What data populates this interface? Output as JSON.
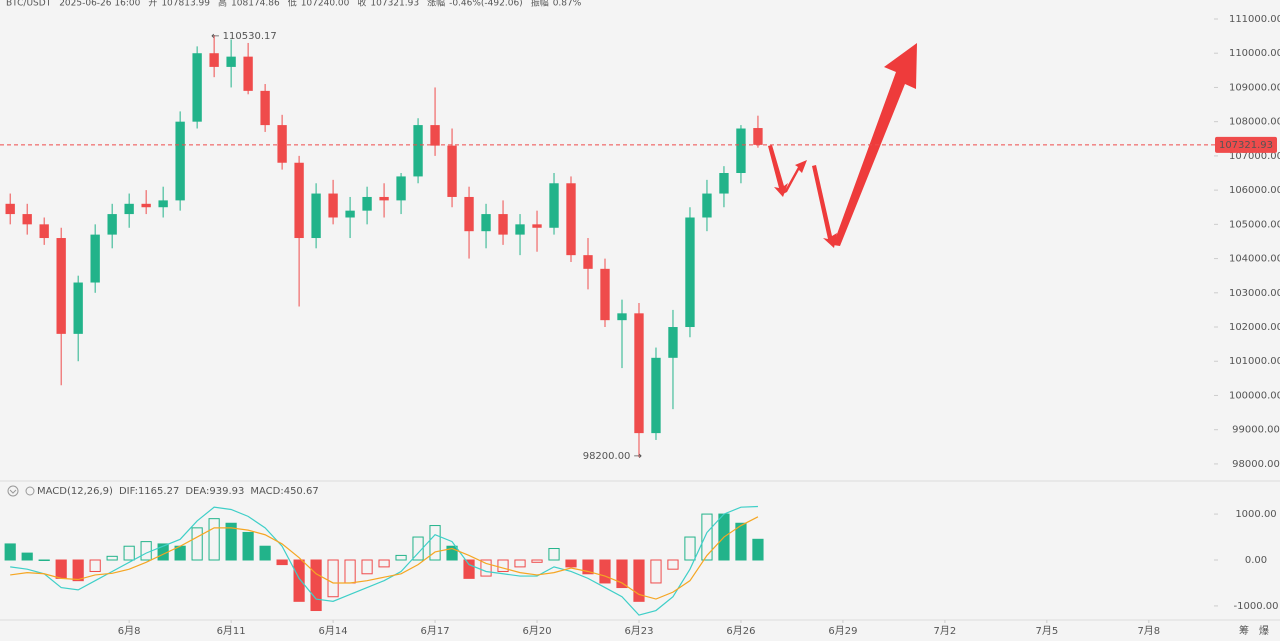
{
  "header": [
    {
      "text": "BTC/USDT",
      "color": "#888888"
    },
    {
      "text": "2025-06-26 16:00",
      "color": "#888888"
    },
    {
      "text": "开",
      "color": "#888888"
    },
    {
      "text": "107813.99",
      "color": "#ef4b4b"
    },
    {
      "text": "高",
      "color": "#888888"
    },
    {
      "text": "108174.86",
      "color": "#ef4b4b"
    },
    {
      "text": "低",
      "color": "#888888"
    },
    {
      "text": "107240.00",
      "color": "#ef4b4b"
    },
    {
      "text": "收",
      "color": "#888888"
    },
    {
      "text": "107321.93",
      "color": "#ef4b4b"
    },
    {
      "text": "涨幅",
      "color": "#888888"
    },
    {
      "text": "-0.46%(-492.06)",
      "color": "#ef4b4b"
    },
    {
      "text": "振幅",
      "color": "#888888"
    },
    {
      "text": "0.87%",
      "color": "#ef4b4b"
    }
  ],
  "footer_icons": [
    "筹",
    "爆"
  ],
  "chart_data": [
    {
      "type": "candlestick",
      "up_color": "#22b38a",
      "down_color": "#ef4b4b",
      "high_label": "← 110530.17",
      "low_label": "98200.00 →",
      "last_price_label": "107321.93",
      "x": [
        4.5,
        5,
        5.5,
        6,
        6.5,
        7,
        7.5,
        8,
        8.5,
        9,
        9.5,
        10,
        10.5,
        11,
        11.5,
        12,
        12.5,
        13,
        13.5,
        14,
        14.5,
        15,
        15.5,
        16,
        16.5,
        17,
        17.5,
        18,
        18.5,
        19,
        19.5,
        20,
        20.5,
        21,
        21.5,
        22,
        22.5,
        23,
        23.5,
        24,
        24.5,
        25,
        25.5,
        26,
        26.5
      ],
      "open": [
        105600,
        105300,
        105000,
        104600,
        101800,
        103300,
        104700,
        105300,
        105600,
        105500,
        105700,
        108000,
        110000,
        109600,
        109900,
        108900,
        107900,
        106800,
        104600,
        105900,
        105200,
        105400,
        105800,
        105700,
        106400,
        107900,
        107300,
        105800,
        104800,
        105300,
        104700,
        105000,
        104900,
        106200,
        104100,
        103700,
        102200,
        102400,
        98900,
        101100,
        102000,
        105200,
        105900,
        106500,
        107813.99
      ],
      "high": [
        105900,
        105600,
        105200,
        104900,
        103500,
        105000,
        105600,
        105900,
        106000,
        106100,
        108300,
        110200,
        110530.17,
        110400,
        110300,
        109100,
        108200,
        107000,
        106200,
        106300,
        105800,
        106100,
        106200,
        106500,
        108100,
        109000,
        107800,
        106100,
        105600,
        105700,
        105300,
        105400,
        106500,
        106400,
        104600,
        104000,
        102800,
        102700,
        101400,
        102500,
        105500,
        106300,
        106700,
        107900,
        108174.86
      ],
      "low": [
        105000,
        104700,
        104400,
        100300,
        101000,
        103000,
        104300,
        104900,
        105300,
        105200,
        105400,
        107800,
        109300,
        109000,
        108800,
        107700,
        106600,
        102600,
        104300,
        105000,
        104600,
        105000,
        105200,
        105300,
        106200,
        107000,
        105500,
        104000,
        104300,
        104400,
        104100,
        104200,
        104700,
        103900,
        103100,
        102000,
        100800,
        98200,
        98700,
        99600,
        101700,
        104800,
        105500,
        106200,
        107240
      ],
      "close": [
        105300,
        105000,
        104600,
        101800,
        103300,
        104700,
        105300,
        105600,
        105500,
        105700,
        108000,
        110000,
        109600,
        109900,
        108900,
        107900,
        106800,
        104600,
        105900,
        105200,
        105400,
        105800,
        105700,
        106400,
        107900,
        107300,
        105800,
        104800,
        105300,
        104700,
        105000,
        104900,
        106200,
        104100,
        103700,
        102200,
        102400,
        98900,
        101100,
        102000,
        105200,
        105900,
        106500,
        107800,
        107321.93
      ],
      "xlim": [
        4.2,
        39.8
      ],
      "xticks": [
        {
          "value": 8,
          "label": "6月8"
        },
        {
          "value": 11,
          "label": "6月11"
        },
        {
          "value": 14,
          "label": "6月14"
        },
        {
          "value": 17,
          "label": "6月17"
        },
        {
          "value": 20,
          "label": "6月20"
        },
        {
          "value": 23,
          "label": "6月23"
        },
        {
          "value": 26,
          "label": "6月26"
        },
        {
          "value": 29,
          "label": "6月29"
        },
        {
          "value": 32,
          "label": "7月2"
        },
        {
          "value": 35,
          "label": "7月5"
        },
        {
          "value": 38,
          "label": "7月8"
        }
      ],
      "ylim": [
        97530,
        111555
      ],
      "yticks": [
        {
          "value": 98000,
          "label": "98000.00"
        },
        {
          "value": 99000,
          "label": "99000.00"
        },
        {
          "value": 100000,
          "label": "100000.00"
        },
        {
          "value": 101000,
          "label": "101000.00"
        },
        {
          "value": 102000,
          "label": "102000.00"
        },
        {
          "value": 103000,
          "label": "103000.00"
        },
        {
          "value": 104000,
          "label": "104000.00"
        },
        {
          "value": 105000,
          "label": "105000.00"
        },
        {
          "value": 106000,
          "label": "106000.00"
        },
        {
          "value": 107000,
          "label": "107000.00"
        },
        {
          "value": 108000,
          "label": "108000.00"
        },
        {
          "value": 109000,
          "label": "109000.00"
        },
        {
          "value": 110000,
          "label": "110000.00"
        },
        {
          "value": 111000,
          "label": "111000.00"
        }
      ],
      "grid": false
    },
    {
      "type": "macd",
      "title": "MACD(12,26,9)",
      "x": [
        4.5,
        5,
        5.5,
        6,
        6.5,
        7,
        7.5,
        8,
        8.5,
        9,
        9.5,
        10,
        10.5,
        11,
        11.5,
        12,
        12.5,
        13,
        13.5,
        14,
        14.5,
        15,
        15.5,
        16,
        16.5,
        17,
        17.5,
        18,
        18.5,
        19,
        19.5,
        20,
        20.5,
        21,
        21.5,
        22,
        22.5,
        23,
        23.5,
        24,
        24.5,
        25,
        25.5,
        26,
        26.5
      ],
      "series": [
        {
          "name": "DIF:1165.27",
          "color": "#3fcfc8",
          "kind": "line",
          "values": [
            -150,
            -200,
            -300,
            -600,
            -650,
            -450,
            -250,
            -50,
            150,
            300,
            450,
            850,
            1150,
            1100,
            950,
            700,
            300,
            -400,
            -850,
            -900,
            -750,
            -600,
            -450,
            -250,
            150,
            550,
            400,
            -100,
            -250,
            -300,
            -350,
            -350,
            -150,
            -250,
            -400,
            -600,
            -800,
            -1200,
            -1100,
            -800,
            -200,
            600,
            1000,
            1150,
            1165.27
          ]
        },
        {
          "name": "DEA:939.93",
          "color": "#f5a623",
          "kind": "line",
          "values": [
            -325,
            -275,
            -300,
            -400,
            -425,
            -325,
            -290,
            -200,
            -50,
            125,
            300,
            500,
            700,
            700,
            650,
            550,
            350,
            50,
            -300,
            -500,
            -500,
            -450,
            -375,
            -300,
            -100,
            175,
            250,
            100,
            -75,
            -175,
            -275,
            -325,
            -275,
            -175,
            -250,
            -350,
            -500,
            -750,
            -850,
            -700,
            -450,
            100,
            500,
            750,
            939.93
          ]
        },
        {
          "name": "MACD:450.67",
          "color": "#22b38a",
          "down_color": "#ef4b4b",
          "kind": "histogram",
          "values": [
            350,
            150,
            0,
            -400,
            -450,
            -250,
            80,
            300,
            400,
            350,
            300,
            700,
            900,
            800,
            600,
            300,
            -100,
            -900,
            -1100,
            -800,
            -500,
            -300,
            -150,
            100,
            500,
            750,
            300,
            -400,
            -350,
            -250,
            -150,
            -50,
            250,
            -150,
            -300,
            -500,
            -600,
            -900,
            -500,
            -200,
            500,
            1000,
            1000,
            800,
            450.67
          ]
        }
      ],
      "xlim": [
        4.2,
        39.8
      ],
      "ylim": [
        -1350,
        1350
      ],
      "yticks": [
        {
          "value": 1000,
          "label": "1000.00"
        },
        {
          "value": 0,
          "label": "0.00"
        },
        {
          "value": -1000,
          "label": "-1000.00"
        }
      ],
      "grid": false
    }
  ]
}
